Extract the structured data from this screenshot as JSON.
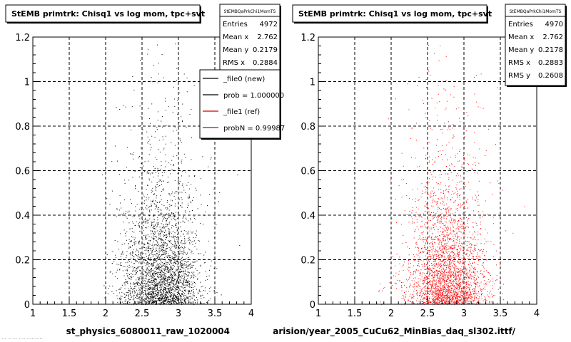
{
  "panels": [
    {
      "title": "StEMB primtrk: Chisq1 vs log mom, tpc+svt",
      "stats": {
        "name": "StEMBQaPrkChi1MomTS",
        "rows": [
          {
            "label": "Entries",
            "value": "4972"
          },
          {
            "label": "Mean x",
            "value": "2.762"
          },
          {
            "label": "Mean y",
            "value": "0.2179"
          },
          {
            "label": "RMS x",
            "value": "0.2884"
          }
        ]
      },
      "legend": [
        {
          "label": "_file0 (new)",
          "color": "#000000"
        },
        {
          "label": "prob = 1.000000",
          "color": "#000000"
        },
        {
          "label": "_file1 (ref)",
          "color": "#cc0000"
        },
        {
          "label": "probN = 0.99987",
          "color": "#cc0000"
        }
      ],
      "xlabel": "st_physics_6080011_raw_1020004",
      "point_color": "#000000"
    },
    {
      "title": "StEMB primtrk: Chisq1 vs log mom, tpc+svt",
      "stats": {
        "name": "StEMBQaPrkChi1MomTS",
        "rows": [
          {
            "label": "Entries",
            "value": "4970"
          },
          {
            "label": "Mean x",
            "value": "2.762"
          },
          {
            "label": "Mean y",
            "value": "0.2178"
          },
          {
            "label": "RMS x",
            "value": "0.2883"
          },
          {
            "label": "RMS y",
            "value": "0.2608"
          }
        ]
      },
      "legend": [],
      "xlabel": "arision/year_2005_CuCu62_MinBias_daq_sl302.ittf/",
      "point_color": "#ff0000"
    }
  ],
  "chart_data": [
    {
      "type": "scatter",
      "title": "StEMB primtrk: Chisq1 vs log mom, tpc+svt",
      "xlabel": "st_physics_6080011_raw_1020004",
      "ylabel": "",
      "xlim": [
        1,
        4
      ],
      "ylim": [
        0,
        1.2
      ],
      "xticks": [
        1,
        1.5,
        2,
        2.5,
        3,
        3.5,
        4
      ],
      "yticks": [
        0,
        0.2,
        0.4,
        0.6,
        0.8,
        1,
        1.2
      ],
      "xtick_labels": [
        "1",
        "1.5",
        "2",
        "2.5",
        "3",
        "3.5",
        "4"
      ],
      "ytick_labels": [
        "0",
        "0.2",
        "0.4",
        "0.6",
        "0.8",
        "1",
        "1.2"
      ],
      "grid": true,
      "series": [
        {
          "name": "_file0 (new)",
          "entries": 4972,
          "mean_x": 2.762,
          "mean_y": 0.2179,
          "rms_x": 0.2884,
          "color": "#000000"
        }
      ]
    },
    {
      "type": "scatter",
      "title": "StEMB primtrk: Chisq1 vs log mom, tpc+svt",
      "xlabel": "arision/year_2005_CuCu62_MinBias_daq_sl302.ittf/",
      "ylabel": "",
      "xlim": [
        1,
        4
      ],
      "ylim": [
        0,
        1.2
      ],
      "xticks": [
        1,
        1.5,
        2,
        2.5,
        3,
        3.5,
        4
      ],
      "yticks": [
        0,
        0.2,
        0.4,
        0.6,
        0.8,
        1,
        1.2
      ],
      "xtick_labels": [
        "1",
        "1.5",
        "2",
        "2.5",
        "3",
        "3.5",
        "4"
      ],
      "ytick_labels": [
        "0",
        "0.2",
        "0.4",
        "0.6",
        "0.8",
        "1",
        "1.2"
      ],
      "grid": true,
      "series": [
        {
          "name": "_file1 (ref)",
          "entries": 4970,
          "mean_x": 2.762,
          "mean_y": 0.2178,
          "rms_x": 0.2883,
          "rms_y": 0.2608,
          "color": "#ff0000"
        }
      ]
    }
  ],
  "footer_text": "... .. ... .... .......... "
}
